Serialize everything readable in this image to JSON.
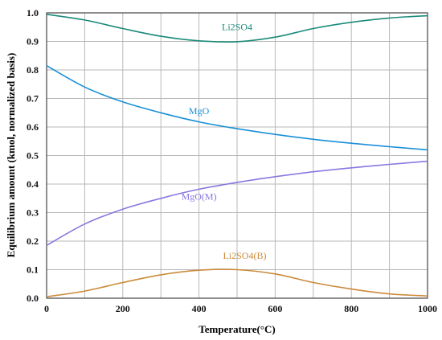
{
  "chart_data": {
    "type": "line",
    "title": "",
    "xlabel": "Temperature(°C)",
    "ylabel": "Equilibrium amount (kmol, normalized basis)",
    "xlim": [
      0,
      1000
    ],
    "ylim": [
      0,
      1.0
    ],
    "x_ticks": [
      "0",
      "200",
      "400",
      "600",
      "800",
      "1000"
    ],
    "y_ticks": [
      "0.0",
      "0.1",
      "0.2",
      "0.3",
      "0.4",
      "0.5",
      "0.6",
      "0.7",
      "0.8",
      "0.9",
      "1.0"
    ],
    "grid": true,
    "series": [
      {
        "name": "Li2SO4",
        "color": "#1a8a7a",
        "label_position": [
          500,
          0.94
        ],
        "x": [
          0,
          100,
          200,
          300,
          400,
          500,
          600,
          700,
          800,
          900,
          1000
        ],
        "y": [
          0.995,
          0.975,
          0.945,
          0.918,
          0.902,
          0.899,
          0.915,
          0.945,
          0.967,
          0.982,
          0.99
        ]
      },
      {
        "name": "MgO",
        "color": "#1a8fd8",
        "label_position": [
          400,
          0.645
        ],
        "x": [
          0,
          100,
          200,
          300,
          400,
          500,
          600,
          700,
          800,
          900,
          1000
        ],
        "y": [
          0.815,
          0.74,
          0.688,
          0.65,
          0.618,
          0.594,
          0.574,
          0.557,
          0.543,
          0.531,
          0.52
        ]
      },
      {
        "name": "MgO(M)",
        "color": "#8878e0",
        "label_position": [
          400,
          0.345
        ],
        "x": [
          0,
          100,
          200,
          300,
          400,
          500,
          600,
          700,
          800,
          900,
          1000
        ],
        "y": [
          0.185,
          0.26,
          0.312,
          0.35,
          0.382,
          0.406,
          0.426,
          0.443,
          0.457,
          0.469,
          0.48
        ]
      },
      {
        "name": "Li2SO4(B)",
        "color": "#cc8a3a",
        "label_position": [
          520,
          0.138
        ],
        "x": [
          0,
          100,
          200,
          300,
          400,
          500,
          600,
          700,
          800,
          900,
          1000
        ],
        "y": [
          0.005,
          0.025,
          0.055,
          0.082,
          0.098,
          0.1,
          0.085,
          0.055,
          0.032,
          0.015,
          0.008
        ]
      }
    ]
  }
}
